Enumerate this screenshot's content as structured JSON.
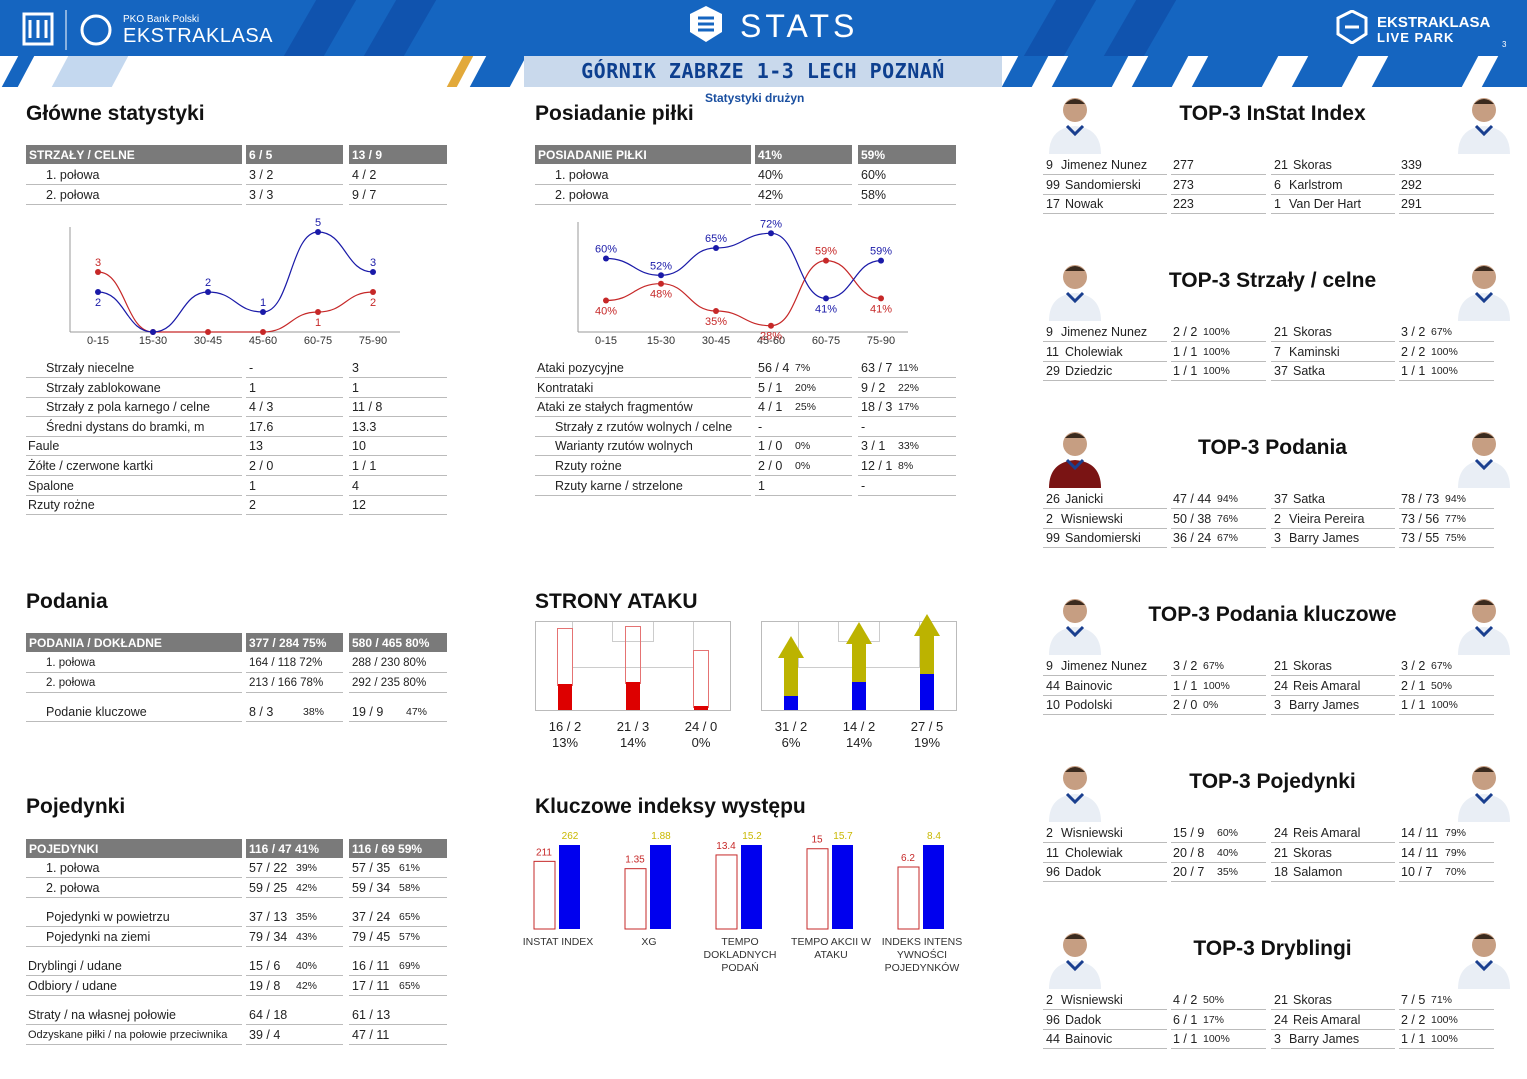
{
  "header": {
    "sponsor": "PKO Bank Polski",
    "league": "EKSTRAKLASA",
    "title": "STATS",
    "brand_top": "EKSTRAKLASA",
    "brand_bottom": "LIVE PARK",
    "page_number": "3",
    "match": "GÓRNIK ZABRZE 1-3 LECH POZNAŃ",
    "subtitle": "Statystyki drużyn"
  },
  "colors": {
    "home": "#c62828",
    "away": "#1a1aa8",
    "accent": "#1565c0",
    "olive": "#bcb300",
    "blue": "#0000ee",
    "red": "#dd0000"
  },
  "main_stats": {
    "title": "Główne statystyki",
    "header": [
      "STRZAŁY / CELNE",
      "6 / 5",
      "13 / 9"
    ],
    "halves": [
      [
        "1. połowa",
        "3 / 2",
        "4 / 2"
      ],
      [
        "2. połowa",
        "3 / 3",
        "9 / 7"
      ]
    ],
    "rows": [
      [
        "Strzały niecelne",
        "-",
        "3"
      ],
      [
        "Strzały zablokowane",
        "1",
        "1"
      ],
      [
        "Strzały z pola karnego / celne",
        "4 / 3",
        "11 / 8"
      ],
      [
        "Średni dystans do bramki, m",
        "17.6",
        "13.3"
      ],
      [
        "Faule",
        "13",
        "10"
      ],
      [
        "Żółte / czerwone kartki",
        "2 / 0",
        "1 / 1"
      ],
      [
        "Spalone",
        "1",
        "4"
      ],
      [
        "Rzuty rożne",
        "2",
        "12"
      ]
    ]
  },
  "chart_data": [
    {
      "type": "line",
      "x": [
        "0-15",
        "15-30",
        "30-45",
        "45-60",
        "60-75",
        "75-90"
      ],
      "series": [
        {
          "values": [
            3,
            0,
            0,
            0,
            1,
            2
          ]
        },
        {
          "values": [
            2,
            0,
            2,
            1,
            5,
            3
          ]
        }
      ],
      "ylim": [
        0,
        5
      ]
    },
    {
      "type": "line",
      "x": [
        "0-15",
        "15-30",
        "30-45",
        "45-60",
        "60-75",
        "75-90"
      ],
      "series": [
        {
          "values": [
            40,
            48,
            35,
            28,
            59,
            41
          ]
        },
        {
          "values": [
            60,
            52,
            65,
            72,
            41,
            59
          ]
        }
      ],
      "value_suffix": "%"
    },
    {
      "type": "bar",
      "categories": [
        "INSTAT INDEX",
        "XG",
        "TEMPO DOKLADNYCH PODAŃ",
        "TEMPO AKCII W ATAKU",
        "INDEKS INTENS YWNOŚCI POJEDYNKÓW"
      ],
      "series": [
        {
          "values": [
            211,
            1.35,
            13.4,
            15,
            6.2
          ]
        },
        {
          "values": [
            262,
            1.88,
            15.2,
            15.7,
            8.4
          ]
        }
      ]
    }
  ],
  "possession": {
    "title": "Posiadanie piłki",
    "header": [
      "POSIADANIE PIŁKI",
      "41%",
      "59%"
    ],
    "halves": [
      [
        "1. połowa",
        "40%",
        "60%"
      ],
      [
        "2. połowa",
        "42%",
        "58%"
      ]
    ],
    "rows": [
      {
        "label": "Ataki pozycyjne",
        "a": "56 / 4",
        "ap": "7%",
        "b": "63 / 7",
        "bp": "11%",
        "indent": false
      },
      {
        "label": "Kontrataki",
        "a": "5 / 1",
        "ap": "20%",
        "b": "9 / 2",
        "bp": "22%",
        "indent": false
      },
      {
        "label": "Ataki ze stałych fragmentów",
        "a": "4 / 1",
        "ap": "25%",
        "b": "18 / 3",
        "bp": "17%",
        "indent": false
      },
      {
        "label": "Strzały z rzutów wolnych / celne",
        "a": "-",
        "ap": "",
        "b": "-",
        "bp": "",
        "indent": true
      },
      {
        "label": "Warianty rzutów wolnych",
        "a": "1 / 0",
        "ap": "0%",
        "b": "3 / 1",
        "bp": "33%",
        "indent": true
      },
      {
        "label": "Rzuty rożne",
        "a": "2 / 0",
        "ap": "0%",
        "b": "12 / 1",
        "bp": "8%",
        "indent": true
      },
      {
        "label": "Rzuty karne / strzelone",
        "a": "1",
        "ap": "",
        "b": "-",
        "bp": "",
        "indent": true
      }
    ]
  },
  "passes": {
    "title": "Podania",
    "header": [
      "PODANIA / DOKŁADNE",
      "377 / 284 75%",
      "580 / 465 80%"
    ],
    "rows": [
      [
        "1. połowa",
        "164 / 118 72%",
        "288 / 230 80%"
      ],
      [
        "2. połowa",
        "213 / 166 78%",
        "292 / 235 80%"
      ]
    ],
    "key": {
      "label": "Podanie kluczowe",
      "a": "8 / 3",
      "ap": "38%",
      "b": "19 / 9",
      "bp": "47%"
    }
  },
  "attack": {
    "title": "STRONY ATAKU",
    "home": [
      {
        "v": "16 / 2",
        "p": "13%",
        "level": 0.13
      },
      {
        "v": "21 / 3",
        "p": "14%",
        "level": 0.14
      },
      {
        "v": "24 / 0",
        "p": "0%",
        "level": 0
      }
    ],
    "away": [
      {
        "v": "31 / 2",
        "p": "6%",
        "level": 0.06
      },
      {
        "v": "14 / 2",
        "p": "14%",
        "level": 0.14
      },
      {
        "v": "27 / 5",
        "p": "19%",
        "level": 0.19
      }
    ]
  },
  "duels": {
    "title": "Pojedynki",
    "header": [
      "POJEDYNKI",
      "116 / 47 41%",
      "116 / 69 59%"
    ],
    "rows": [
      {
        "label": "1. połowa",
        "a": "57 / 22",
        "ap": "39%",
        "b": "57 / 35",
        "bp": "61%",
        "indent": true,
        "gap": 0
      },
      {
        "label": "2. połowa",
        "a": "59 / 25",
        "ap": "42%",
        "b": "59 / 34",
        "bp": "58%",
        "indent": true,
        "gap": 0
      },
      {
        "label": "Pojedynki w powietrzu",
        "a": "37 / 13",
        "ap": "35%",
        "b": "37 / 24",
        "bp": "65%",
        "indent": true,
        "gap": 10
      },
      {
        "label": "Pojedynki na ziemi",
        "a": "79 / 34",
        "ap": "43%",
        "b": "79 / 45",
        "bp": "57%",
        "indent": true,
        "gap": 0
      },
      {
        "label": "Dryblingi / udane",
        "a": "15 / 6",
        "ap": "40%",
        "b": "16 / 11",
        "bp": "69%",
        "indent": false,
        "gap": 10
      },
      {
        "label": "Odbiory / udane",
        "a": "19 / 8",
        "ap": "42%",
        "b": "17 / 11",
        "bp": "65%",
        "indent": false,
        "gap": 0
      },
      {
        "label": "Straty / na własnej połowie",
        "a": "64 / 18",
        "ap": "",
        "b": "61 / 13",
        "bp": "",
        "indent": false,
        "gap": 10
      },
      {
        "label": "Odzyskane piłki / na połowie przeciwnika",
        "a": "39 / 4",
        "ap": "",
        "b": "47 / 11",
        "bp": "",
        "indent": false,
        "gap": 0,
        "small": true
      }
    ]
  },
  "kpi": {
    "title": "Kluczowe indeksy występu"
  },
  "tops": [
    {
      "title": "TOP-3 InStat Index",
      "left": [
        [
          "9",
          "Jimenez Nunez",
          "277",
          ""
        ],
        [
          "99",
          "Sandomierski",
          "273",
          ""
        ],
        [
          "17",
          "Nowak",
          "223",
          ""
        ]
      ],
      "right": [
        [
          "21",
          "Skoras",
          "339",
          ""
        ],
        [
          "6",
          "Karlstrom",
          "292",
          ""
        ],
        [
          "1",
          "Van Der Hart",
          "291",
          ""
        ]
      ]
    },
    {
      "title": "TOP-3 Strzały / celne",
      "left": [
        [
          "9",
          "Jimenez Nunez",
          "2 / 2",
          "100%"
        ],
        [
          "11",
          "Cholewiak",
          "1 / 1",
          "100%"
        ],
        [
          "29",
          "Dziedzic",
          "1 / 1",
          "100%"
        ]
      ],
      "right": [
        [
          "21",
          "Skoras",
          "3 / 2",
          "67%"
        ],
        [
          "7",
          "Kaminski",
          "2 / 2",
          "100%"
        ],
        [
          "37",
          "Satka",
          "1 / 1",
          "100%"
        ]
      ]
    },
    {
      "title": "TOP-3 Podania",
      "left": [
        [
          "26",
          "Janicki",
          "47 / 44",
          "94%"
        ],
        [
          "2",
          "Wisniewski",
          "50 / 38",
          "76%"
        ],
        [
          "99",
          "Sandomierski",
          "36 / 24",
          "67%"
        ]
      ],
      "right": [
        [
          "37",
          "Satka",
          "78 / 73",
          "94%"
        ],
        [
          "2",
          "Vieira Pereira",
          "73 / 56",
          "77%"
        ],
        [
          "3",
          "Barry James",
          "73 / 55",
          "75%"
        ]
      ]
    },
    {
      "title": "TOP-3 Podania kluczowe",
      "left": [
        [
          "9",
          "Jimenez Nunez",
          "3 / 2",
          "67%"
        ],
        [
          "44",
          "Bainovic",
          "1 / 1",
          "100%"
        ],
        [
          "10",
          "Podolski",
          "2 / 0",
          "0%"
        ]
      ],
      "right": [
        [
          "21",
          "Skoras",
          "3 / 2",
          "67%"
        ],
        [
          "24",
          "Reis Amaral",
          "2 / 1",
          "50%"
        ],
        [
          "3",
          "Barry James",
          "1 / 1",
          "100%"
        ]
      ]
    },
    {
      "title": "TOP-3 Pojedynki",
      "left": [
        [
          "2",
          "Wisniewski",
          "15 / 9",
          "60%"
        ],
        [
          "11",
          "Cholewiak",
          "20 / 8",
          "40%"
        ],
        [
          "96",
          "Dadok",
          "20 / 7",
          "35%"
        ]
      ],
      "right": [
        [
          "24",
          "Reis Amaral",
          "14 / 11",
          "79%"
        ],
        [
          "21",
          "Skoras",
          "14 / 11",
          "79%"
        ],
        [
          "18",
          "Salamon",
          "10 / 7",
          "70%"
        ]
      ]
    },
    {
      "title": "TOP-3 Dryblingi",
      "left": [
        [
          "2",
          "Wisniewski",
          "4 / 2",
          "50%"
        ],
        [
          "96",
          "Dadok",
          "6 / 1",
          "17%"
        ],
        [
          "44",
          "Bainovic",
          "1 / 1",
          "100%"
        ]
      ],
      "right": [
        [
          "21",
          "Skoras",
          "7 / 5",
          "71%"
        ],
        [
          "24",
          "Reis Amaral",
          "2 / 2",
          "100%"
        ],
        [
          "3",
          "Barry James",
          "1 / 1",
          "100%"
        ]
      ]
    }
  ]
}
